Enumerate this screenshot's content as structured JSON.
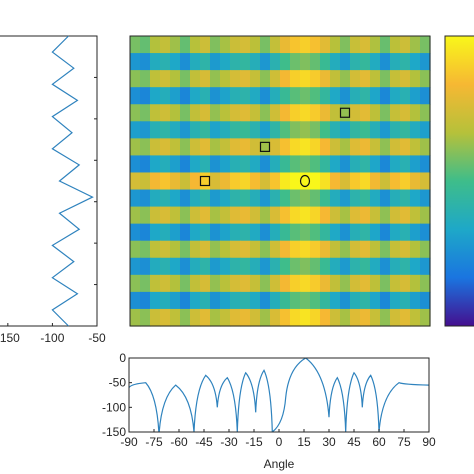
{
  "chart_data": [
    {
      "type": "line",
      "name_role": "left-side-profile",
      "orientation": "vertical",
      "xlim": [
        -170,
        -50
      ],
      "xticks": [
        -150,
        -100,
        -50
      ],
      "xticklabels": [
        "-150",
        "-100",
        "-50"
      ],
      "points_db": [
        -82,
        -100,
        -76,
        -100,
        -72,
        -100,
        -78,
        -100,
        -70,
        -92,
        -55,
        -92,
        -70,
        -100,
        -76,
        -100,
        -72,
        -100,
        -82
      ],
      "grid": false
    },
    {
      "type": "heatmap",
      "name_role": "angle-map",
      "columns_value": [
        0.4,
        0.35,
        0.55,
        0.62,
        0.5,
        0.35,
        0.56,
        0.66,
        0.42,
        0.52,
        0.65,
        0.7,
        0.58,
        0.4,
        0.62,
        0.8,
        0.92,
        0.97,
        0.9,
        0.76,
        0.56,
        0.42,
        0.64,
        0.72,
        0.54,
        0.36,
        0.58,
        0.66,
        0.5,
        0.4
      ],
      "rows_value": [
        0.7,
        0.15,
        0.75,
        0.1,
        0.75,
        0.2,
        0.8,
        0.1,
        1.0,
        0.15,
        0.8,
        0.1,
        0.75,
        0.15,
        0.75,
        0.1,
        0.8
      ],
      "colormap": [
        "#440f8f",
        "#1a75e0",
        "#1ea8c8",
        "#3ebd8a",
        "#b6c13a",
        "#f6b833",
        "#f9f71a"
      ],
      "markers": [
        {
          "shape": "square",
          "col": 7,
          "row": 8
        },
        {
          "shape": "square",
          "col": 13,
          "row": 6
        },
        {
          "shape": "square",
          "col": 21,
          "row": 4
        },
        {
          "shape": "circle",
          "col": 17,
          "row": 8
        }
      ]
    },
    {
      "type": "line",
      "name_role": "bottom-angle-profile",
      "xlabel": "Angle",
      "xlim": [
        -90,
        90
      ],
      "ylim": [
        -150,
        0
      ],
      "xticks": [
        -90,
        -75,
        -60,
        -45,
        -30,
        -15,
        0,
        15,
        30,
        45,
        60,
        75,
        90
      ],
      "xticklabels": [
        "-90",
        "-75",
        "-60",
        "-45",
        "-30",
        "-15",
        "0",
        "15",
        "30",
        "45",
        "60",
        "75",
        "90"
      ],
      "yticks": [
        0,
        -50,
        -100,
        -150
      ],
      "yticklabels": [
        "0",
        "-50",
        "-100",
        "-150"
      ],
      "lobe_nulls": [
        {
          "angle": -72,
          "depth": -155
        },
        {
          "angle": -51,
          "depth": -150
        },
        {
          "angle": -37,
          "depth": -100
        },
        {
          "angle": -25,
          "depth": -150
        },
        {
          "angle": -14,
          "depth": -110
        },
        {
          "angle": -4,
          "depth": -150
        },
        {
          "angle": 4,
          "depth": -80
        },
        {
          "angle": 30,
          "depth": -120
        },
        {
          "angle": 40,
          "depth": -150
        },
        {
          "angle": 50,
          "depth": -100
        },
        {
          "angle": 60,
          "depth": -150
        }
      ],
      "lobe_peaks": [
        {
          "angle": -90,
          "level": -60
        },
        {
          "angle": -80,
          "level": -50
        },
        {
          "angle": -62,
          "level": -55
        },
        {
          "angle": -44,
          "level": -35
        },
        {
          "angle": -31,
          "level": -40
        },
        {
          "angle": -20,
          "level": -30
        },
        {
          "angle": -9,
          "level": -25
        },
        {
          "angle": 16,
          "level": 0
        },
        {
          "angle": 35,
          "level": -40
        },
        {
          "angle": 45,
          "level": -30
        },
        {
          "angle": 55,
          "level": -35
        },
        {
          "angle": 72,
          "level": -50
        },
        {
          "angle": 90,
          "level": -55
        }
      ],
      "grid": false
    }
  ]
}
